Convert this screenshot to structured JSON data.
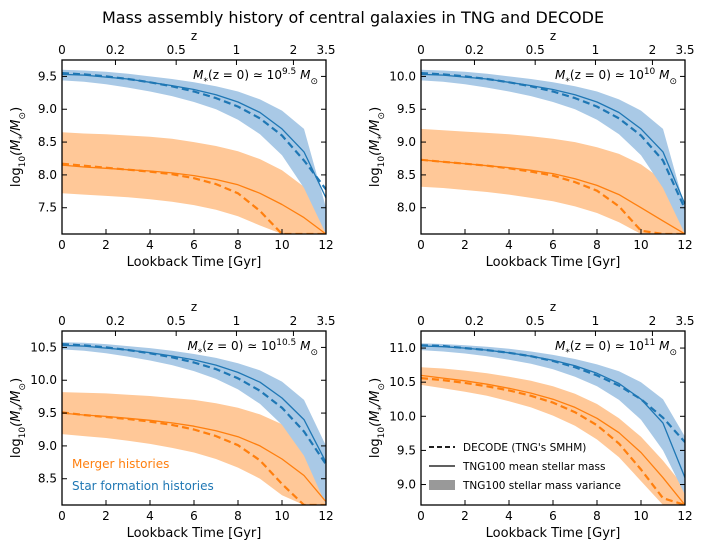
{
  "figure_title": "Mass assembly history of central galaxies in TNG and DECODE",
  "colors": {
    "sfh": "#1f77b4",
    "sfh_band": "#a9c9e6",
    "merger": "#ff7f0e",
    "merger_band": "#ffc898",
    "variance_legend": "#999999"
  },
  "chart_data": [
    {
      "type": "line",
      "panel": "top-left",
      "annotation_prefix": "M",
      "annotation_sub": "*",
      "annotation_mid": "(z = 0) ≃ 10",
      "annotation_exp": "9.5",
      "annotation_suffix": "M",
      "annotation_suffix_sub": "⊙",
      "xlabel": "Lookback Time [Gyr]",
      "ylabel_parts": [
        "log",
        "10",
        "(M",
        "*",
        "/M",
        "⊙",
        ")"
      ],
      "top_axis_label": "z",
      "xlim": [
        0,
        12
      ],
      "ylim": [
        7.1,
        9.75
      ],
      "xticks": [
        0,
        2,
        4,
        6,
        8,
        10,
        12
      ],
      "yticks": [
        7.5,
        8.0,
        8.5,
        9.0,
        9.5
      ],
      "ytick_labels": [
        "7.5",
        "8.0",
        "8.5",
        "9.0",
        "9.5"
      ],
      "top_ticks": [
        {
          "label": "0",
          "t": 0
        },
        {
          "label": "0.2",
          "t": 2.43
        },
        {
          "label": "0.5",
          "t": 5.19
        },
        {
          "label": "1",
          "t": 7.93
        },
        {
          "label": "2",
          "t": 10.52
        },
        {
          "label": "3.5",
          "t": 12
        }
      ],
      "x": [
        0,
        1,
        2,
        3,
        4,
        5,
        6,
        7,
        8,
        9,
        10,
        11,
        12
      ],
      "series": [
        {
          "name": "Star formation histories (TNG100 mean)",
          "role": "sfh_mean",
          "values": [
            9.53,
            9.52,
            9.49,
            9.46,
            9.41,
            9.36,
            9.3,
            9.22,
            9.11,
            8.95,
            8.7,
            8.35,
            7.65
          ]
        },
        {
          "name": "Star formation histories (DECODE)",
          "role": "sfh_decode",
          "values": [
            9.55,
            9.53,
            9.5,
            9.46,
            9.41,
            9.35,
            9.27,
            9.17,
            9.04,
            8.86,
            8.6,
            8.22,
            7.78
          ]
        },
        {
          "name": "SFH variance upper",
          "role": "sfh_hi",
          "values": [
            9.6,
            9.59,
            9.57,
            9.54,
            9.5,
            9.46,
            9.41,
            9.35,
            9.27,
            9.15,
            8.98,
            8.7,
            7.5
          ]
        },
        {
          "name": "SFH variance lower",
          "role": "sfh_lo",
          "values": [
            9.44,
            9.42,
            9.38,
            9.33,
            9.27,
            9.2,
            9.11,
            9.0,
            8.84,
            8.62,
            8.3,
            7.8,
            7.1
          ]
        },
        {
          "name": "Merger histories (TNG100 mean)",
          "role": "mer_mean",
          "values": [
            8.15,
            8.12,
            8.1,
            8.08,
            8.06,
            8.03,
            7.99,
            7.93,
            7.85,
            7.72,
            7.55,
            7.35,
            7.1
          ]
        },
        {
          "name": "Merger histories (DECODE)",
          "role": "mer_decode",
          "values": [
            8.17,
            8.14,
            8.11,
            8.08,
            8.05,
            8.01,
            7.95,
            7.86,
            7.72,
            7.45,
            7.1,
            7.1,
            7.1
          ]
        },
        {
          "name": "Merger variance upper",
          "role": "mer_hi",
          "values": [
            8.65,
            8.63,
            8.62,
            8.6,
            8.58,
            8.55,
            8.5,
            8.44,
            8.36,
            8.24,
            8.07,
            7.82,
            7.35
          ]
        },
        {
          "name": "Merger variance lower",
          "role": "mer_lo",
          "values": [
            7.72,
            7.7,
            7.68,
            7.66,
            7.63,
            7.59,
            7.54,
            7.47,
            7.37,
            7.23,
            7.1,
            7.1,
            7.1
          ]
        }
      ]
    },
    {
      "type": "line",
      "panel": "top-right",
      "annotation_prefix": "M",
      "annotation_sub": "*",
      "annotation_mid": "(z = 0) ≃ 10",
      "annotation_exp": "10",
      "annotation_suffix": "M",
      "annotation_suffix_sub": "⊙",
      "xlabel": "Lookback Time [Gyr]",
      "ylabel_parts": [
        "log",
        "10",
        "(M",
        "*",
        "/M",
        "⊙",
        ")"
      ],
      "top_axis_label": "z",
      "xlim": [
        0,
        12
      ],
      "ylim": [
        7.6,
        10.25
      ],
      "xticks": [
        0,
        2,
        4,
        6,
        8,
        10,
        12
      ],
      "yticks": [
        8.0,
        8.5,
        9.0,
        9.5,
        10.0
      ],
      "ytick_labels": [
        "8.0",
        "8.5",
        "9.0",
        "9.5",
        "10.0"
      ],
      "top_ticks": [
        {
          "label": "0",
          "t": 0
        },
        {
          "label": "0.2",
          "t": 2.43
        },
        {
          "label": "0.5",
          "t": 5.19
        },
        {
          "label": "1",
          "t": 7.93
        },
        {
          "label": "2",
          "t": 10.52
        },
        {
          "label": "3.5",
          "t": 12
        }
      ],
      "x": [
        0,
        1,
        2,
        3,
        4,
        5,
        6,
        7,
        8,
        9,
        10,
        11,
        12
      ],
      "series": [
        {
          "name": "Star formation histories (TNG100 mean)",
          "role": "sfh_mean",
          "values": [
            10.03,
            10.02,
            9.99,
            9.96,
            9.91,
            9.86,
            9.8,
            9.72,
            9.61,
            9.45,
            9.2,
            8.85,
            8.05
          ]
        },
        {
          "name": "Star formation histories (DECODE)",
          "role": "sfh_decode",
          "values": [
            10.05,
            10.03,
            10.0,
            9.96,
            9.91,
            9.85,
            9.77,
            9.67,
            9.54,
            9.36,
            9.1,
            8.72,
            7.98
          ]
        },
        {
          "name": "SFH variance upper",
          "role": "sfh_hi",
          "values": [
            10.1,
            10.09,
            10.07,
            10.04,
            10.0,
            9.96,
            9.91,
            9.85,
            9.77,
            9.65,
            9.48,
            9.2,
            8.0
          ]
        },
        {
          "name": "SFH variance lower",
          "role": "sfh_lo",
          "values": [
            9.94,
            9.92,
            9.88,
            9.83,
            9.77,
            9.7,
            9.61,
            9.5,
            9.34,
            9.12,
            8.8,
            8.3,
            7.6
          ]
        },
        {
          "name": "Merger histories (TNG100 mean)",
          "role": "mer_mean",
          "values": [
            8.73,
            8.7,
            8.67,
            8.64,
            8.61,
            8.57,
            8.52,
            8.44,
            8.34,
            8.2,
            8.0,
            7.8,
            7.6
          ]
        },
        {
          "name": "Merger histories (DECODE)",
          "role": "mer_decode",
          "values": [
            8.73,
            8.7,
            8.67,
            8.64,
            8.6,
            8.55,
            8.49,
            8.39,
            8.26,
            8.02,
            7.65,
            7.6,
            7.6
          ]
        },
        {
          "name": "Merger variance upper",
          "role": "mer_hi",
          "values": [
            9.2,
            9.18,
            9.16,
            9.14,
            9.12,
            9.09,
            9.05,
            9.0,
            8.92,
            8.82,
            8.66,
            8.42,
            7.95
          ]
        },
        {
          "name": "Merger variance lower",
          "role": "mer_lo",
          "values": [
            8.32,
            8.3,
            8.27,
            8.24,
            8.2,
            8.15,
            8.1,
            8.02,
            7.92,
            7.78,
            7.6,
            7.6,
            7.6
          ]
        }
      ]
    },
    {
      "type": "line",
      "panel": "bottom-left",
      "annotation_prefix": "M",
      "annotation_sub": "*",
      "annotation_mid": "(z = 0) ≃ 10",
      "annotation_exp": "10.5",
      "annotation_suffix": "M",
      "annotation_suffix_sub": "⊙",
      "xlabel": "Lookback Time [Gyr]",
      "ylabel_parts": [
        "log",
        "10",
        "(M",
        "*",
        "/M",
        "⊙",
        ")"
      ],
      "top_axis_label": "z",
      "xlim": [
        0,
        12
      ],
      "ylim": [
        8.1,
        10.75
      ],
      "xticks": [
        0,
        2,
        4,
        6,
        8,
        10,
        12
      ],
      "yticks": [
        8.5,
        9.0,
        9.5,
        10.0,
        10.5
      ],
      "ytick_labels": [
        "8.5",
        "9.0",
        "9.5",
        "10.0",
        "10.5"
      ],
      "top_ticks": [
        {
          "label": "0",
          "t": 0
        },
        {
          "label": "0.2",
          "t": 2.43
        },
        {
          "label": "0.5",
          "t": 5.19
        },
        {
          "label": "1",
          "t": 7.93
        },
        {
          "label": "2",
          "t": 10.52
        },
        {
          "label": "3.5",
          "t": 12
        }
      ],
      "x": [
        0,
        1,
        2,
        3,
        4,
        5,
        6,
        7,
        8,
        9,
        10,
        11,
        12
      ],
      "series": [
        {
          "name": "Star formation histories (TNG100 mean)",
          "role": "sfh_mean",
          "values": [
            10.53,
            10.52,
            10.49,
            10.46,
            10.42,
            10.37,
            10.31,
            10.23,
            10.12,
            9.97,
            9.73,
            9.4,
            8.75
          ]
        },
        {
          "name": "Star formation histories (DECODE)",
          "role": "sfh_decode",
          "values": [
            10.55,
            10.53,
            10.5,
            10.46,
            10.41,
            10.35,
            10.27,
            10.17,
            10.03,
            9.84,
            9.58,
            9.22,
            8.72
          ]
        },
        {
          "name": "SFH variance upper",
          "role": "sfh_hi",
          "values": [
            10.58,
            10.57,
            10.55,
            10.52,
            10.49,
            10.45,
            10.4,
            10.34,
            10.26,
            10.15,
            9.98,
            9.7,
            9.0
          ]
        },
        {
          "name": "SFH variance lower",
          "role": "sfh_lo",
          "values": [
            10.47,
            10.45,
            10.41,
            10.36,
            10.3,
            10.23,
            10.14,
            10.02,
            9.86,
            9.64,
            9.32,
            8.85,
            8.1
          ]
        },
        {
          "name": "Merger histories (TNG100 mean)",
          "role": "mer_mean",
          "values": [
            9.5,
            9.47,
            9.45,
            9.42,
            9.39,
            9.35,
            9.3,
            9.23,
            9.14,
            9.0,
            8.8,
            8.55,
            8.15
          ]
        },
        {
          "name": "Merger histories (DECODE)",
          "role": "mer_decode",
          "values": [
            9.51,
            9.47,
            9.44,
            9.41,
            9.37,
            9.32,
            9.25,
            9.15,
            9.01,
            8.78,
            8.42,
            8.1,
            8.1
          ]
        },
        {
          "name": "Merger variance upper",
          "role": "mer_hi",
          "values": [
            9.82,
            9.81,
            9.8,
            9.78,
            9.76,
            9.73,
            9.7,
            9.65,
            9.58,
            9.48,
            9.33,
            9.1,
            8.65
          ]
        },
        {
          "name": "Merger variance lower",
          "role": "mer_lo",
          "values": [
            9.18,
            9.15,
            9.12,
            9.08,
            9.03,
            8.97,
            8.9,
            8.8,
            8.67,
            8.5,
            8.25,
            8.1,
            8.1
          ]
        }
      ],
      "text_labels": [
        {
          "text": "Merger histories",
          "role": "merger",
          "position": "lower-left"
        },
        {
          "text": "Star formation histories",
          "role": "sfh",
          "position": "lower-left"
        }
      ]
    },
    {
      "type": "line",
      "panel": "bottom-right",
      "annotation_prefix": "M",
      "annotation_sub": "*",
      "annotation_mid": "(z = 0) ≃ 10",
      "annotation_exp": "11",
      "annotation_suffix": "M",
      "annotation_suffix_sub": "⊙",
      "xlabel": "Lookback Time [Gyr]",
      "ylabel_parts": [
        "log",
        "10",
        "(M",
        "*",
        "/M",
        "⊙",
        ")"
      ],
      "top_axis_label": "z",
      "xlim": [
        0,
        12
      ],
      "ylim": [
        8.7,
        11.25
      ],
      "xticks": [
        0,
        2,
        4,
        6,
        8,
        10,
        12
      ],
      "yticks": [
        9.0,
        9.5,
        10.0,
        10.5,
        11.0
      ],
      "ytick_labels": [
        "9.0",
        "9.5",
        "10.0",
        "10.5",
        "11.0"
      ],
      "top_ticks": [
        {
          "label": "0",
          "t": 0
        },
        {
          "label": "0.2",
          "t": 2.43
        },
        {
          "label": "0.5",
          "t": 5.19
        },
        {
          "label": "1",
          "t": 7.93
        },
        {
          "label": "2",
          "t": 10.52
        },
        {
          "label": "3.5",
          "t": 12
        }
      ],
      "x": [
        0,
        1,
        2,
        3,
        4,
        5,
        6,
        7,
        8,
        9,
        10,
        11,
        12
      ],
      "series": [
        {
          "name": "Star formation histories (TNG100 mean)",
          "role": "sfh_mean",
          "values": [
            11.03,
            11.02,
            11.0,
            10.97,
            10.93,
            10.88,
            10.82,
            10.74,
            10.63,
            10.48,
            10.25,
            9.9,
            9.1
          ]
        },
        {
          "name": "Star formation histories (DECODE)",
          "role": "sfh_decode",
          "values": [
            11.04,
            11.03,
            11.0,
            10.97,
            10.93,
            10.88,
            10.81,
            10.72,
            10.6,
            10.45,
            10.25,
            9.98,
            9.62
          ]
        },
        {
          "name": "SFH variance upper",
          "role": "sfh_hi",
          "values": [
            11.07,
            11.06,
            11.04,
            11.02,
            10.99,
            10.95,
            10.9,
            10.84,
            10.76,
            10.66,
            10.5,
            10.25,
            9.7
          ]
        },
        {
          "name": "SFH variance lower",
          "role": "sfh_lo",
          "values": [
            10.97,
            10.95,
            10.92,
            10.88,
            10.83,
            10.77,
            10.69,
            10.58,
            10.44,
            10.24,
            9.95,
            9.5,
            8.85
          ]
        },
        {
          "name": "Merger histories (TNG100 mean)",
          "role": "mer_mean",
          "values": [
            10.6,
            10.56,
            10.52,
            10.47,
            10.41,
            10.34,
            10.25,
            10.13,
            9.97,
            9.76,
            9.47,
            9.1,
            8.7
          ]
        },
        {
          "name": "Merger histories (DECODE)",
          "role": "mer_decode",
          "values": [
            10.56,
            10.53,
            10.49,
            10.44,
            10.38,
            10.3,
            10.2,
            10.06,
            9.87,
            9.6,
            9.22,
            8.8,
            8.7
          ]
        },
        {
          "name": "Merger variance upper",
          "role": "mer_hi",
          "values": [
            10.72,
            10.7,
            10.67,
            10.63,
            10.58,
            10.52,
            10.44,
            10.33,
            10.18,
            9.97,
            9.7,
            9.35,
            8.95
          ]
        },
        {
          "name": "Merger variance lower",
          "role": "mer_lo",
          "values": [
            10.46,
            10.41,
            10.36,
            10.3,
            10.22,
            10.13,
            10.01,
            9.86,
            9.66,
            9.4,
            9.05,
            8.7,
            8.7
          ]
        }
      ],
      "legend": [
        {
          "label": "DECODE (TNG's SMHM)",
          "style": "dashed"
        },
        {
          "label": "TNG100 mean stellar mass",
          "style": "solid"
        },
        {
          "label": "TNG100 stellar mass variance",
          "style": "patch"
        }
      ],
      "legend_position": "lower-left"
    }
  ]
}
